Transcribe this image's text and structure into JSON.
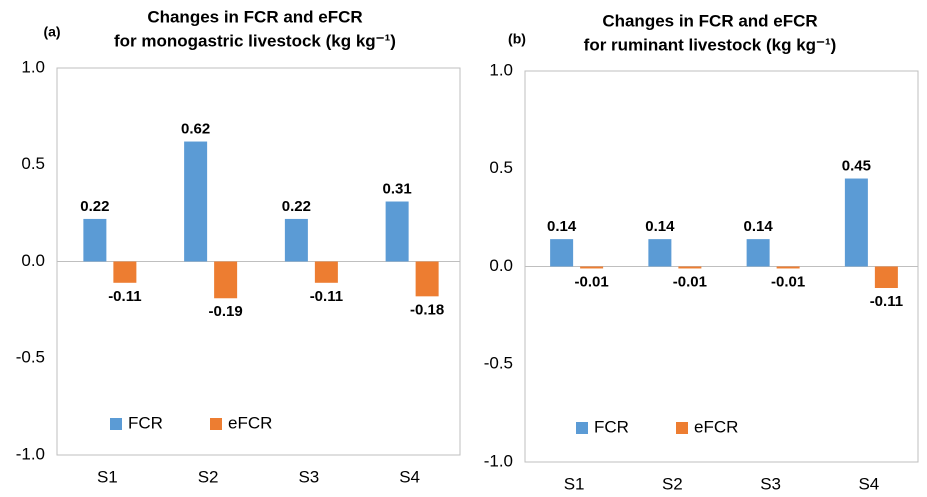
{
  "chart_data": [
    {
      "type": "bar",
      "panel_label": "(a)",
      "title": [
        "Changes in FCR and eFCR",
        "for monogastric livestock (kg kg⁻¹)"
      ],
      "categories": [
        "S1",
        "S2",
        "S3",
        "S4"
      ],
      "series": [
        {
          "name": "FCR",
          "color": "#5b9bd5",
          "values": [
            0.22,
            0.62,
            0.22,
            0.31
          ]
        },
        {
          "name": "eFCR",
          "color": "#ed7d31",
          "values": [
            -0.11,
            -0.19,
            -0.11,
            -0.18
          ]
        }
      ],
      "ylim": [
        -1,
        1
      ],
      "yticks": [
        {
          "value": -1,
          "label": "-1.0"
        },
        -0.5,
        {
          "value": 0,
          "label": "0.0"
        },
        0.5,
        {
          "value": 1,
          "label": "1.0"
        }
      ],
      "legend": "lower left"
    },
    {
      "type": "bar",
      "panel_label": "(b)",
      "title": [
        "Changes in FCR and eFCR",
        "for ruminant livestock (kg kg⁻¹)"
      ],
      "categories": [
        "S1",
        "S2",
        "S3",
        "S4"
      ],
      "series": [
        {
          "name": "FCR",
          "color": "#5b9bd5",
          "values": [
            0.14,
            0.14,
            0.14,
            0.45
          ]
        },
        {
          "name": "eFCR",
          "color": "#ed7d31",
          "values": [
            -0.01,
            -0.01,
            -0.01,
            -0.11
          ]
        }
      ],
      "ylim": [
        -1,
        1
      ],
      "yticks": [
        {
          "value": -1,
          "label": "-1.0"
        },
        -0.5,
        {
          "value": 0,
          "label": "0.0"
        },
        0.5,
        {
          "value": 1,
          "label": "1.0"
        }
      ],
      "legend": "lower left"
    }
  ]
}
